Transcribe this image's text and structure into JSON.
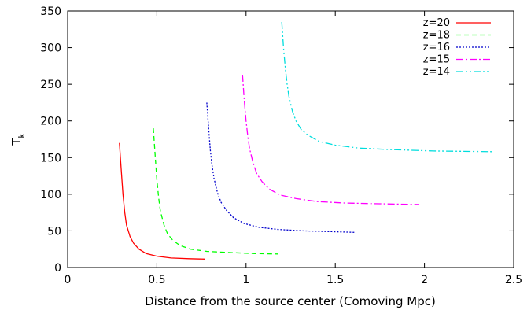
{
  "chart_data": {
    "type": "line",
    "xlabel": "Distance from the source center (Comoving Mpc)",
    "ylabel": "T",
    "ylabel_subscript": "k",
    "xlim": [
      0,
      2.5
    ],
    "ylim": [
      0,
      350
    ],
    "xticks": [
      "0",
      "0.5",
      "1",
      "1.5",
      "2",
      "2.5"
    ],
    "yticks": [
      "0",
      "50",
      "100",
      "150",
      "200",
      "250",
      "300",
      "350"
    ],
    "grid": false,
    "legend_position": "top-right",
    "series": [
      {
        "name": "z=20",
        "color": "#ff0000",
        "dash": "solid",
        "x": [
          0.29,
          0.3,
          0.31,
          0.32,
          0.33,
          0.35,
          0.37,
          0.4,
          0.44,
          0.5,
          0.58,
          0.68,
          0.77
        ],
        "y": [
          170,
          135,
          100,
          75,
          58,
          42,
          33,
          25,
          19,
          15.5,
          13,
          12,
          11.5
        ]
      },
      {
        "name": "z=18",
        "color": "#00ff00",
        "dash": "6,4",
        "x": [
          0.48,
          0.49,
          0.5,
          0.51,
          0.52,
          0.54,
          0.56,
          0.59,
          0.63,
          0.69,
          0.78,
          0.9,
          1.05,
          1.18
        ],
        "y": [
          190,
          155,
          120,
          95,
          77,
          58,
          46,
          37,
          30,
          25,
          22,
          20.5,
          19,
          18.5
        ]
      },
      {
        "name": "z=16",
        "color": "#0000cc",
        "dash": "2,2",
        "x": [
          0.78,
          0.79,
          0.8,
          0.81,
          0.82,
          0.84,
          0.86,
          0.89,
          0.93,
          0.99,
          1.07,
          1.18,
          1.32,
          1.48,
          1.61
        ],
        "y": [
          225,
          190,
          160,
          138,
          122,
          102,
          89,
          78,
          68,
          60,
          55,
          52,
          50,
          49,
          48
        ]
      },
      {
        "name": "z=15",
        "color": "#ff00ff",
        "dash": "9,3,2,3",
        "x": [
          0.98,
          0.99,
          1.0,
          1.01,
          1.02,
          1.04,
          1.06,
          1.09,
          1.13,
          1.19,
          1.28,
          1.4,
          1.55,
          1.75,
          1.97
        ],
        "y": [
          263,
          228,
          200,
          178,
          162,
          142,
          128,
          117,
          107,
          99,
          94,
          90,
          88,
          87,
          86
        ]
      },
      {
        "name": "z=14",
        "color": "#00dddd",
        "dash": "9,3,2,3,2,3",
        "x": [
          1.2,
          1.21,
          1.22,
          1.23,
          1.24,
          1.26,
          1.28,
          1.31,
          1.35,
          1.41,
          1.5,
          1.63,
          1.8,
          2.05,
          2.38
        ],
        "y": [
          335,
          300,
          272,
          250,
          234,
          213,
          200,
          188,
          180,
          172,
          167,
          163,
          161,
          159,
          158
        ]
      }
    ]
  }
}
